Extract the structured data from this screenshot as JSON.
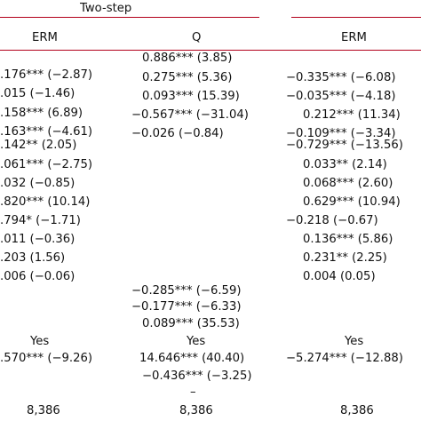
{
  "group_header": "Two-step",
  "columns": [
    "ERM",
    "Q",
    "ERM"
  ],
  "col1": [
    ".176*** (−2.87)",
    ".015 (−1.46)",
    ".158*** (6.89)",
    ".163*** (−4.61)",
    ".142** (2.05)",
    ".061*** (−2.75)",
    ".032 (−0.85)",
    ".820*** (10.14)",
    ".794* (−1.71)",
    ".011 (−0.36)",
    ".203 (1.56)",
    ".006 (−0.06)"
  ],
  "col2": [
    "0.886*** (3.85)",
    "0.275*** (5.36)",
    "0.093*** (15.39)",
    "−0.567*** (−31.04)",
    "−0.026 (−0.84)"
  ],
  "col2_lower": [
    "−0.285*** (−6.59)",
    "−0.177*** (−6.33)",
    "0.089*** (35.53)"
  ],
  "col3": [
    "−0.335*** (−6.08)",
    "−0.035*** (−4.18)",
    "0.212*** (11.34)",
    "−0.109*** (−3.34)",
    "−0.729*** (−13.56)",
    "0.033** (2.14)",
    "0.068*** (2.60)",
    "0.629*** (10.94)",
    "−0.218 (−0.67)",
    "0.136*** (5.86)",
    "0.231** (2.25)",
    "0.004 (0.05)"
  ],
  "fixed_effects": [
    "Yes",
    "Yes",
    "Yes"
  ],
  "constant": [
    ".570*** (−9.26)",
    "14.646*** (40.40)",
    "−5.274*** (−12.88)"
  ],
  "col2_extra": "−0.436*** (−3.25)",
  "col2_dash": "–",
  "observations": [
    "8,386",
    "8,386",
    "8,386"
  ],
  "colors": {
    "rule": "#b3001b",
    "text": "#111111"
  }
}
